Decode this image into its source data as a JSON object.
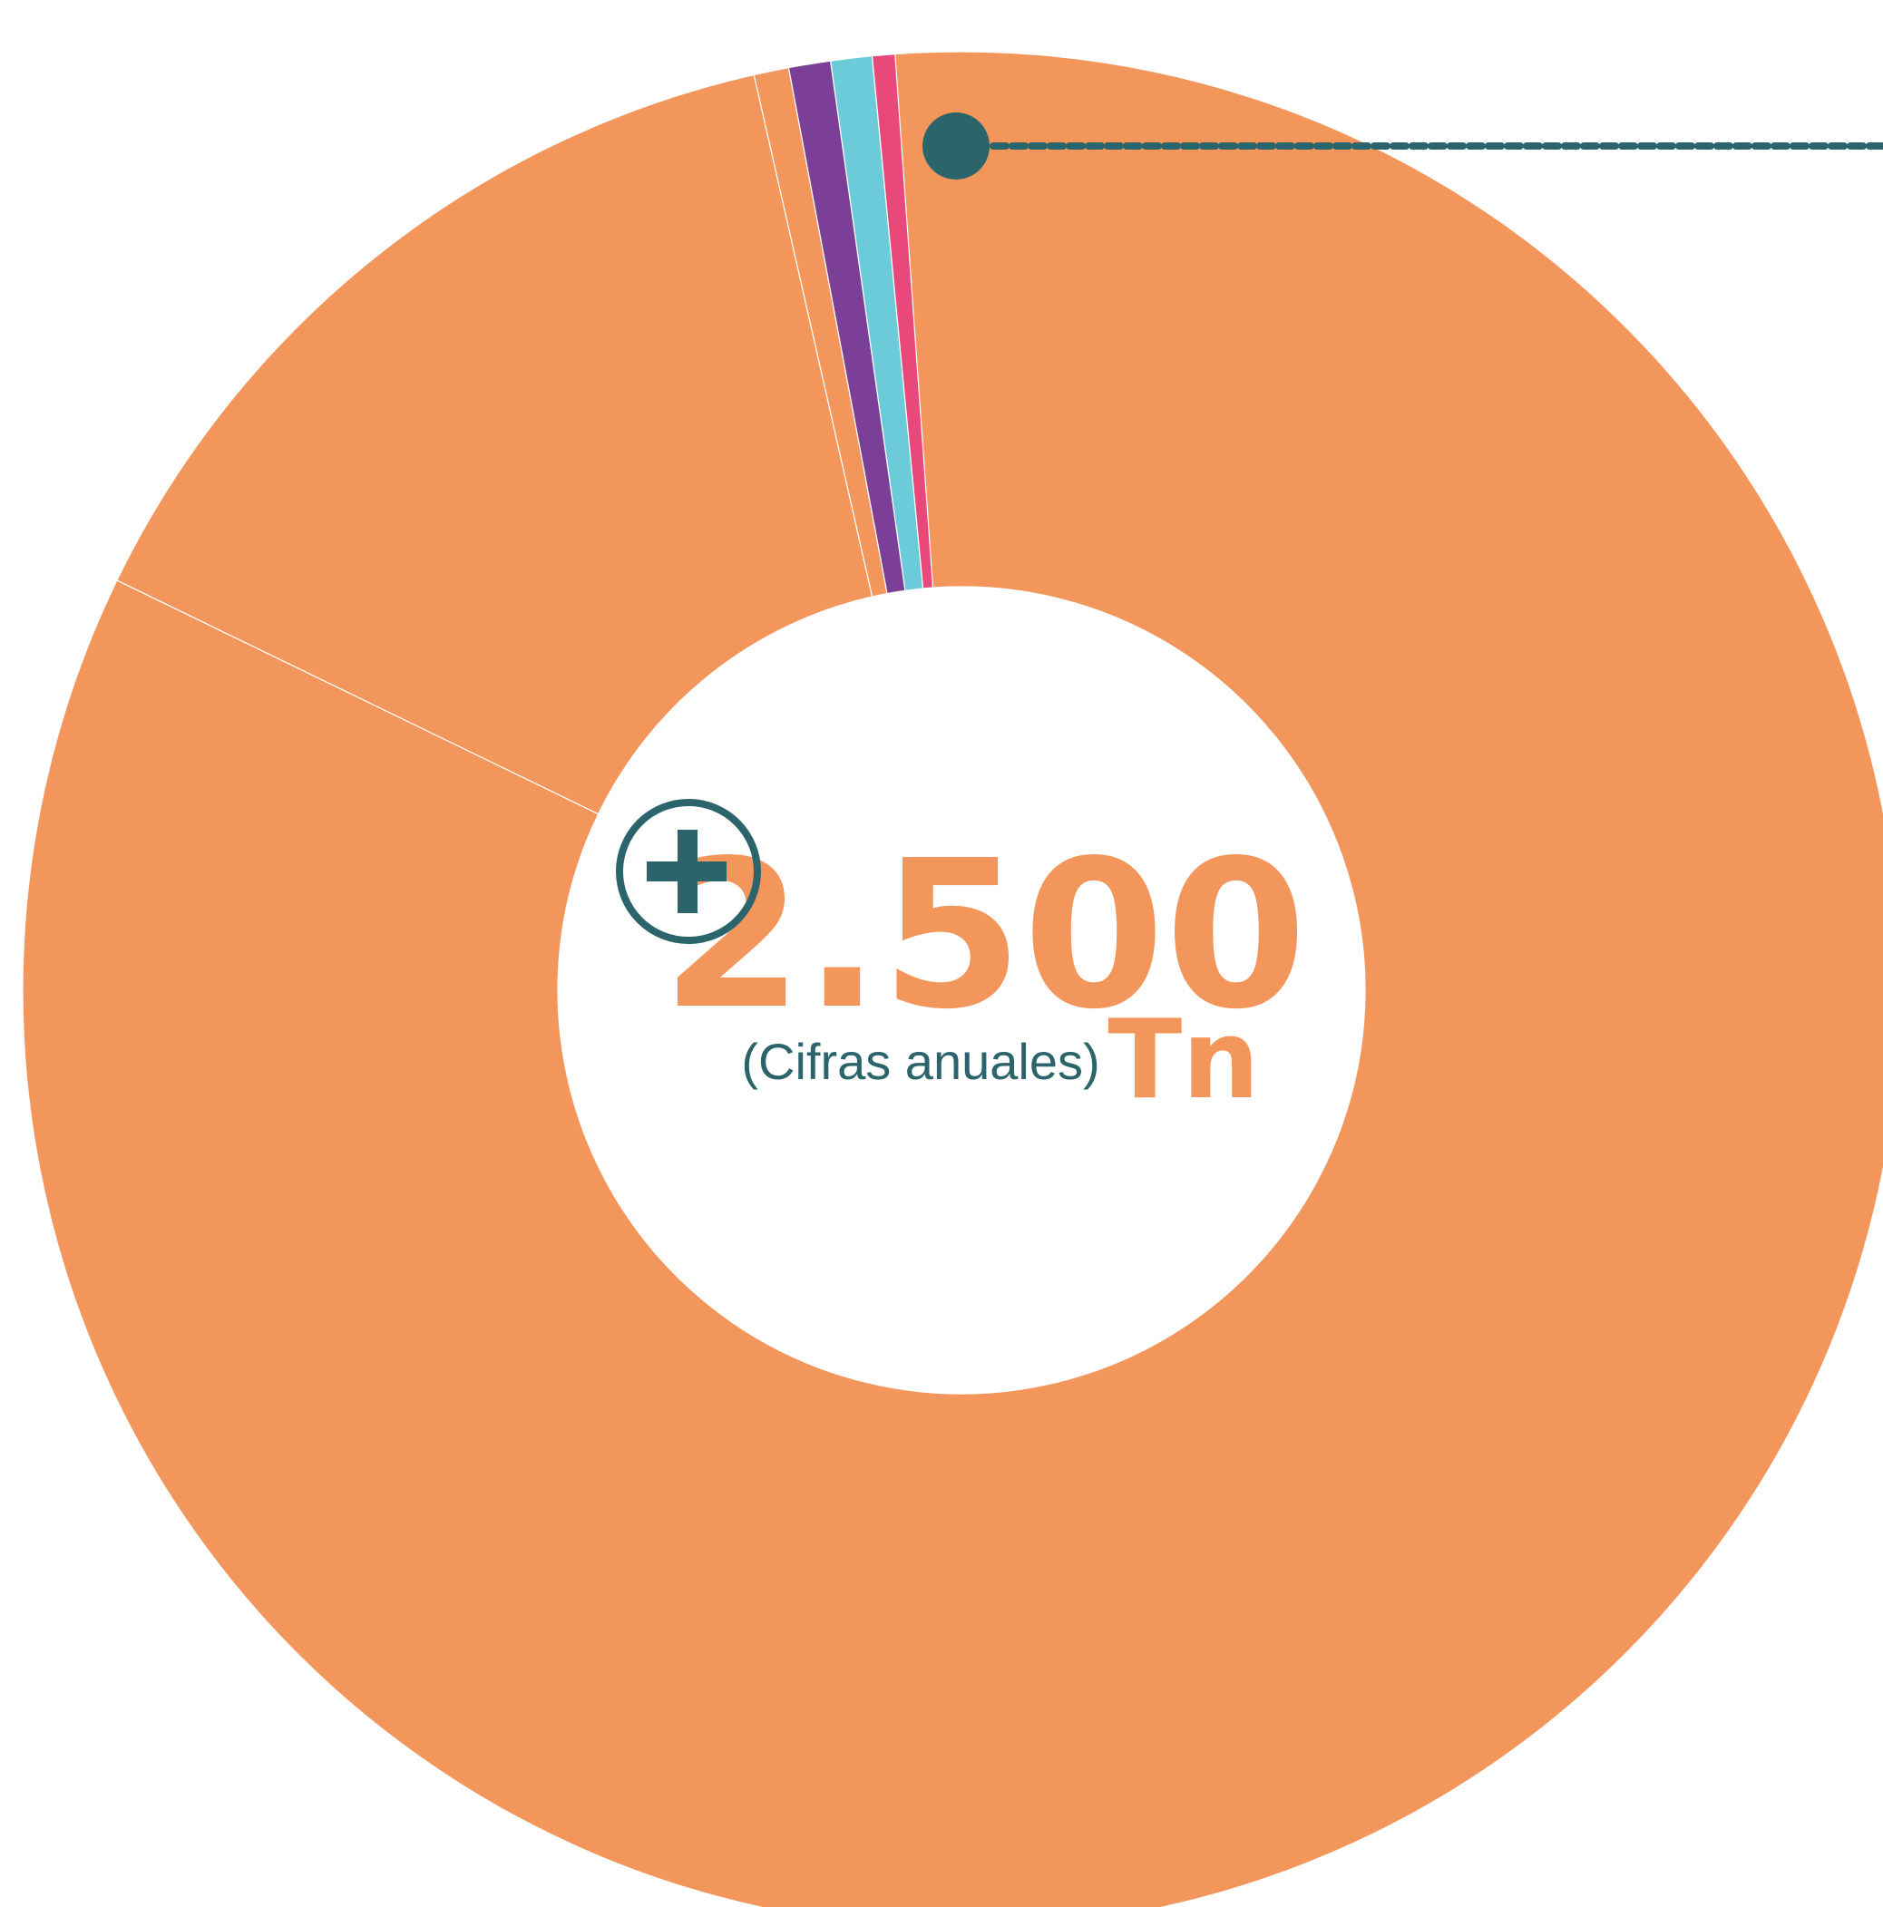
{
  "chart_data": {
    "type": "pie",
    "style": "donut",
    "center": {
      "value": "2.500",
      "unit": "Tn",
      "note": "(Cifras anuales)"
    },
    "segments": [
      {
        "fraction": 0.8386,
        "color": "#F2965C"
      },
      {
        "fraction": 0.1426,
        "color": "#F2965C"
      },
      {
        "fraction": 0.006,
        "color": "#F2965C"
      },
      {
        "fraction": 0.0072,
        "color": "#7B3F98"
      },
      {
        "fraction": 0.0071,
        "color": "#6CCBD9"
      },
      {
        "fraction": 0.0039,
        "color": "#E8487A"
      }
    ],
    "colors": {
      "accent": "#F2965C",
      "marker": "#2C646B",
      "note_text": "#2C646B"
    },
    "icons": [
      "plus-circle-icon",
      "marker-dot-icon"
    ]
  }
}
